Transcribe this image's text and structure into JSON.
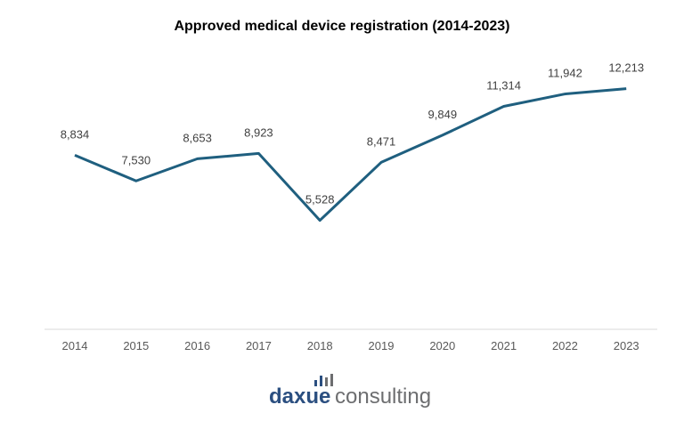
{
  "chart_data": {
    "type": "line",
    "title": "Approved medical device registration (2014-2023)",
    "categories": [
      "2014",
      "2015",
      "2016",
      "2017",
      "2018",
      "2019",
      "2020",
      "2021",
      "2022",
      "2023"
    ],
    "series": [
      {
        "values": [
          8834,
          7530,
          8653,
          8923,
          5528,
          8471,
          9849,
          11314,
          11942,
          12213
        ]
      }
    ],
    "data_labels": [
      "8,834",
      "7,530",
      "8,653",
      "8,923",
      "5,528",
      "8,471",
      "9,849",
      "11,314",
      "11,942",
      "12,213"
    ],
    "ylim": [
      0,
      14000
    ],
    "grid": false,
    "line_color": "#1f5f7f"
  },
  "logo": {
    "text_a": "daxue",
    "text_b": "consulting",
    "color_a": "#2b4f80",
    "color_b": "#6d6e70"
  }
}
